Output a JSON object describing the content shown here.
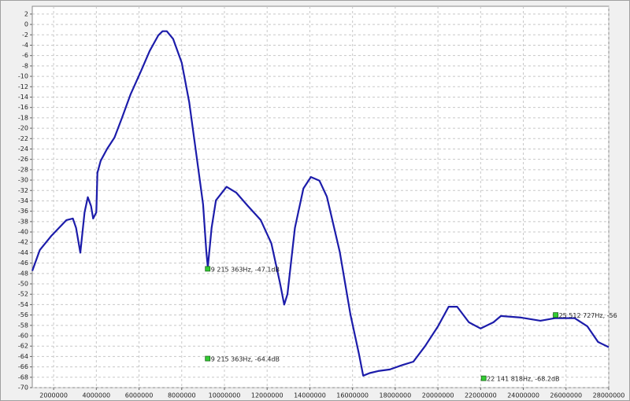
{
  "chart_data": {
    "type": "line",
    "xlim": [
      1000000,
      28000000
    ],
    "ylim": [
      -70,
      3.5
    ],
    "xticks": [
      2000000,
      4000000,
      6000000,
      8000000,
      10000000,
      12000000,
      14000000,
      16000000,
      18000000,
      20000000,
      22000000,
      24000000,
      26000000,
      28000000
    ],
    "yticks": [
      2,
      0,
      -2,
      -4,
      -6,
      -8,
      -10,
      -12,
      -14,
      -16,
      -18,
      -20,
      -22,
      -24,
      -26,
      -28,
      -30,
      -32,
      -34,
      -36,
      -38,
      -40,
      -42,
      -44,
      -46,
      -48,
      -50,
      -52,
      -54,
      -56,
      -58,
      -60,
      -62,
      -64,
      -66,
      -68,
      -70
    ],
    "grid": true,
    "series": [
      {
        "color": "#1c1caa",
        "x": [
          1000000,
          1350000,
          1900000,
          2600000,
          2900000,
          3050000,
          3250000,
          3450000,
          3600000,
          3750000,
          3850000,
          4000000,
          4050000,
          4200000,
          4500000,
          4850000,
          5200000,
          5600000,
          6100000,
          6500000,
          6900000,
          7100000,
          7300000,
          7600000,
          8000000,
          8350000,
          8700000,
          9000000,
          9150000,
          9220000,
          9400000,
          9600000,
          10100000,
          10550000,
          11100000,
          11700000,
          12200000,
          12600000,
          12800000,
          12950000,
          13300000,
          13700000,
          14050000,
          14450000,
          14800000,
          15400000,
          15900000,
          16300000,
          16500000,
          16800000,
          17200000,
          17750000,
          18300000,
          18850000,
          19400000,
          20000000,
          20500000,
          20900000,
          21450000,
          22000000,
          22600000,
          22950000,
          23900000,
          24800000,
          25500000,
          26400000,
          27000000,
          27500000,
          28000000
        ],
        "values": [
          -47.5,
          -43.5,
          -40.7,
          -37.7,
          -37.4,
          -39.2,
          -44,
          -36.2,
          -33.3,
          -35,
          -37.4,
          -36.2,
          -28.6,
          -26.3,
          -24,
          -21.8,
          -18,
          -13.5,
          -8.9,
          -5.1,
          -2.1,
          -1.3,
          -1.3,
          -2.8,
          -7.4,
          -15,
          -25.6,
          -34.7,
          -43.8,
          -46.8,
          -39.2,
          -33.9,
          -31.3,
          -32.4,
          -35,
          -37.7,
          -42.2,
          -49.8,
          -54,
          -52,
          -39.2,
          -31.6,
          -29.4,
          -30.1,
          -33.2,
          -43.8,
          -55.9,
          -63.5,
          -67.7,
          -67.2,
          -66.8,
          -66.5,
          -65.7,
          -65,
          -62,
          -58.2,
          -54.4,
          -54.4,
          -57.4,
          -58.6,
          -57.4,
          -56.2,
          -56.5,
          -57.1,
          -56.6,
          -56.6,
          -58.2,
          -61.2,
          -62.2
        ]
      }
    ],
    "markers": [
      {
        "x": 9215363,
        "y": -47.1,
        "label": "9 215 363Hz, -47.1dB"
      },
      {
        "x": 9215363,
        "y": -64.4,
        "label": "9 215 363Hz, -64.4dB"
      },
      {
        "x": 22141818,
        "y": -68.2,
        "label": "22 141 818Hz, -68.2dB"
      },
      {
        "x": 25512727,
        "y": -56,
        "label": "25 512 727Hz, -56"
      }
    ]
  }
}
